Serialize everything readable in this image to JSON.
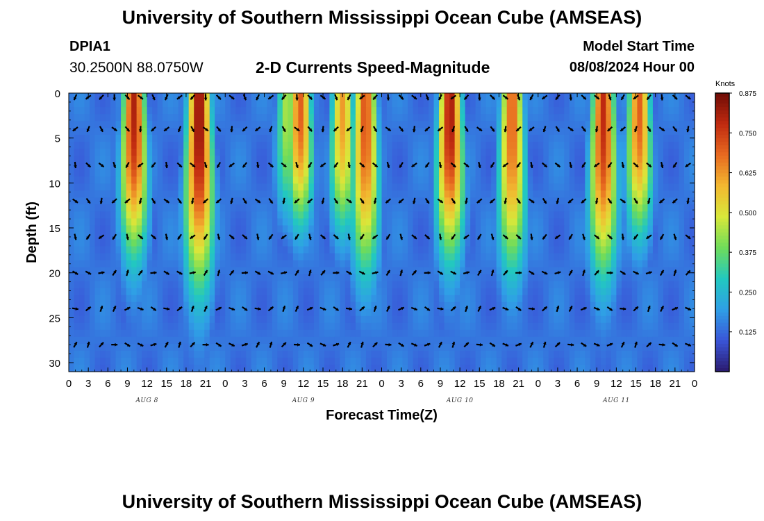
{
  "header": {
    "title": "University of Southern Mississippi Ocean Cube (AMSEAS)",
    "station_id": "DPIA1",
    "coordinates": "30.2500N  88.0750W",
    "product": "2-D Currents Speed-Magnitude",
    "model_start_label": "Model Start Time",
    "model_start_value": "08/08/2024 Hour 00"
  },
  "footer": {
    "title": "University of Southern Mississippi Ocean Cube (AMSEAS)"
  },
  "chart_data": {
    "type": "heatmap",
    "title": "2-D Currents Speed-Magnitude",
    "xlabel": "Forecast Time(Z)",
    "ylabel": "Depth (ft)",
    "x_range_hours": [
      0,
      96
    ],
    "ylim": [
      0,
      31
    ],
    "y_ticks": [
      0,
      5,
      10,
      15,
      20,
      25,
      30
    ],
    "x_tick_labels": [
      "0",
      "3",
      "6",
      "9",
      "12",
      "15",
      "18",
      "21",
      "0",
      "3",
      "6",
      "9",
      "12",
      "15",
      "18",
      "21",
      "0",
      "3",
      "6",
      "9",
      "12",
      "15",
      "18",
      "21",
      "0",
      "3",
      "6",
      "9",
      "12",
      "15",
      "18",
      "21",
      "0"
    ],
    "day_labels": [
      {
        "label": "AUG 8",
        "hour": 12
      },
      {
        "label": "AUG 9",
        "hour": 36
      },
      {
        "label": "AUG 10",
        "hour": 60
      },
      {
        "label": "AUG 11",
        "hour": 84
      }
    ],
    "colorbar": {
      "unit": "Knots",
      "ticks": [
        "0.125",
        "0.250",
        "0.375",
        "0.500",
        "0.625",
        "0.750",
        "0.875"
      ],
      "range": [
        0,
        0.875
      ],
      "colors": [
        "#2a1a6e",
        "#3a55d8",
        "#2f9fe6",
        "#22c8c0",
        "#6fdc5a",
        "#d8e83a",
        "#f2b830",
        "#e86a20",
        "#c02a10",
        "#6e0c06"
      ]
    },
    "surface_pulses_knots": [
      {
        "center_hour": 10,
        "peak": 0.8,
        "depth_ft": 15
      },
      {
        "center_hour": 20,
        "peak": 0.85,
        "depth_ft": 18
      },
      {
        "center_hour": 33.5,
        "peak": 0.45,
        "depth_ft": 12
      },
      {
        "center_hour": 35.5,
        "peak": 0.7,
        "depth_ft": 12
      },
      {
        "center_hour": 42,
        "peak": 0.62,
        "depth_ft": 13
      },
      {
        "center_hour": 45.5,
        "peak": 0.72,
        "depth_ft": 17
      },
      {
        "center_hour": 58.5,
        "peak": 0.82,
        "depth_ft": 15
      },
      {
        "center_hour": 68,
        "peak": 0.7,
        "depth_ft": 17
      },
      {
        "center_hour": 82,
        "peak": 0.78,
        "depth_ft": 17
      },
      {
        "center_hour": 87.5,
        "peak": 0.7,
        "depth_ft": 13
      }
    ]
  }
}
